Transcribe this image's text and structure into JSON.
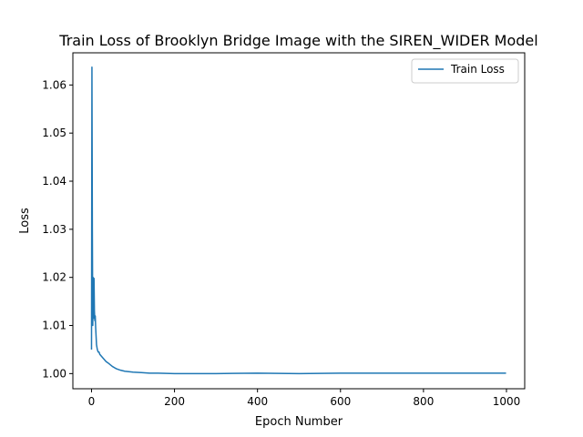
{
  "chart_data": {
    "type": "line",
    "title": "Train Loss of Brooklyn Bridge Image with the SIREN_WIDER Model",
    "xlabel": "Epoch Number",
    "ylabel": "Loss",
    "xlim": [
      -44.95,
      1043.95
    ],
    "ylim": [
      0.99685,
      1.06669
    ],
    "xticks": [
      0,
      200,
      400,
      600,
      800,
      1000
    ],
    "yticks": [
      1.0,
      1.01,
      1.02,
      1.03,
      1.04,
      1.05,
      1.06
    ],
    "xtick_labels": [
      "0",
      "200",
      "400",
      "600",
      "800",
      "1000"
    ],
    "ytick_labels": [
      "1.00",
      "1.01",
      "1.02",
      "1.03",
      "1.04",
      "1.05",
      "1.06"
    ],
    "grid": false,
    "legend": {
      "placement": "top-right",
      "entries": [
        "Train Loss"
      ]
    },
    "colors": {
      "series": "#1f77b4",
      "axes": "#000000"
    },
    "series": [
      {
        "name": "Train Loss",
        "x": [
          0,
          1,
          2,
          3,
          4,
          5,
          6,
          7,
          8,
          9,
          10,
          12,
          14,
          16,
          18,
          20,
          25,
          30,
          35,
          40,
          50,
          60,
          70,
          80,
          90,
          100,
          120,
          140,
          160,
          200,
          250,
          300,
          400,
          500,
          600,
          700,
          800,
          900,
          999
        ],
        "y": [
          1.005,
          1.0637,
          1.03,
          1.01,
          1.02,
          1.0115,
          1.0198,
          1.013,
          1.011,
          1.012,
          1.0095,
          1.006,
          1.005,
          1.0045,
          1.0045,
          1.004,
          1.0035,
          1.003,
          1.0025,
          1.0022,
          1.0015,
          1.001,
          1.0007,
          1.0005,
          1.0004,
          1.0003,
          1.0002,
          1.0001,
          1.0001,
          1.0,
          1.0,
          1.0,
          1.0001,
          1.0,
          1.0001,
          1.0001,
          1.0001,
          1.0001,
          1.0001
        ]
      }
    ]
  }
}
